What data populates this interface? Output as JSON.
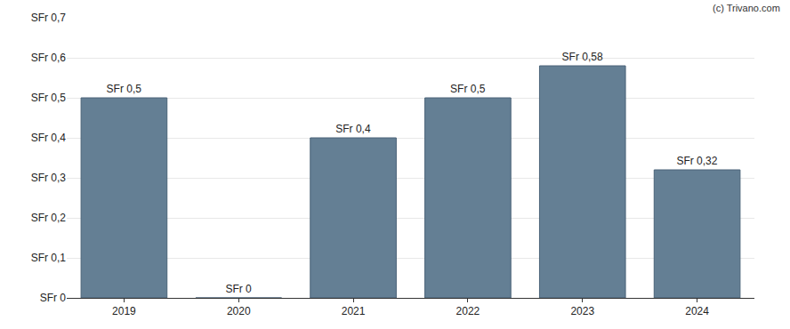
{
  "chart_data": {
    "type": "bar",
    "categories": [
      "2019",
      "2020",
      "2021",
      "2022",
      "2023",
      "2024"
    ],
    "values": [
      0.5,
      0,
      0.4,
      0.5,
      0.58,
      0.32
    ],
    "value_labels": [
      "SFr 0,5",
      "SFr 0",
      "SFr 0,4",
      "SFr 0,5",
      "SFr 0,58",
      "SFr 0,32"
    ],
    "data_labels": true,
    "color": "#647f94",
    "ylim": [
      0,
      0.7
    ],
    "yticks": [
      {
        "value": 0,
        "label": "SFr 0"
      },
      {
        "value": 0.1,
        "label": "SFr 0,1"
      },
      {
        "value": 0.2,
        "label": "SFr 0,2"
      },
      {
        "value": 0.3,
        "label": "SFr 0,3"
      },
      {
        "value": 0.4,
        "label": "SFr 0,4"
      },
      {
        "value": 0.5,
        "label": "SFr 0,5"
      },
      {
        "value": 0.6,
        "label": "SFr 0,6"
      },
      {
        "value": 0.7,
        "label": "SFr 0,7"
      }
    ],
    "grid": true,
    "annotations": [
      {
        "text": "(c) Trivano.com"
      }
    ]
  }
}
